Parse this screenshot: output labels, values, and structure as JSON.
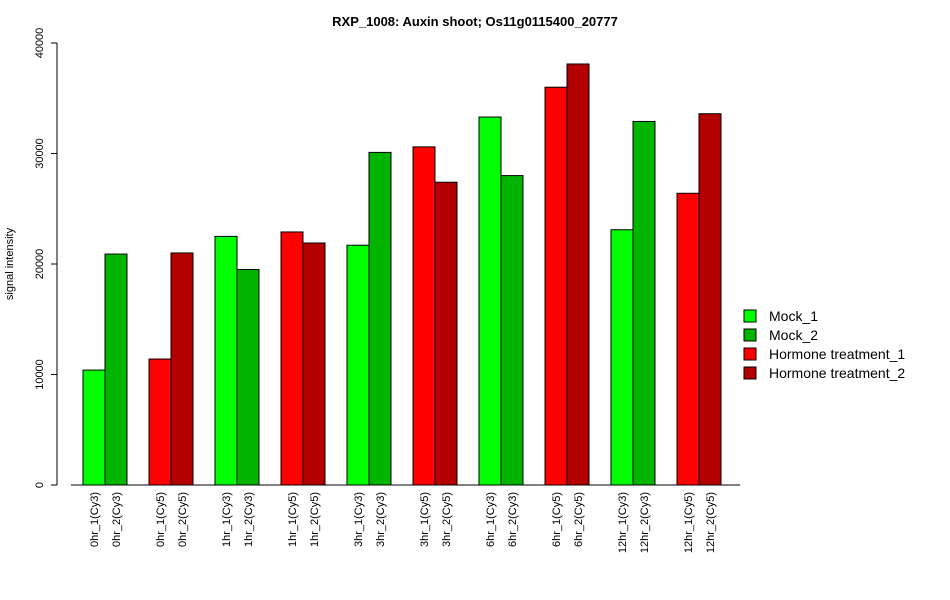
{
  "chart_data": {
    "type": "bar",
    "title": "RXP_1008: Auxin shoot; Os11g0115400_20777",
    "xlabel": "",
    "ylabel": "signal intensity",
    "ylim": [
      0,
      40000
    ],
    "yticks": [
      0,
      10000,
      20000,
      30000,
      40000
    ],
    "grid": false,
    "legend_position": "right",
    "series": [
      {
        "name": "Mock_1",
        "color": "#00ff00"
      },
      {
        "name": "Mock_2",
        "color": "#00b400"
      },
      {
        "name": "Hormone treatment_1",
        "color": "#ff0000"
      },
      {
        "name": "Hormone treatment_2",
        "color": "#b40000"
      }
    ],
    "bars": [
      {
        "label": "0hr_1(Cy3)",
        "value": 10400,
        "series": 0
      },
      {
        "label": "0hr_2(Cy3)",
        "value": 20900,
        "series": 1
      },
      {
        "label": "0hr_1(Cy5)",
        "value": 11400,
        "series": 2
      },
      {
        "label": "0hr_2(Cy5)",
        "value": 21000,
        "series": 3
      },
      {
        "label": "1hr_1(Cy3)",
        "value": 22500,
        "series": 0
      },
      {
        "label": "1hr_2(Cy3)",
        "value": 19500,
        "series": 1
      },
      {
        "label": "1hr_1(Cy5)",
        "value": 22900,
        "series": 2
      },
      {
        "label": "1hr_2(Cy5)",
        "value": 21900,
        "series": 3
      },
      {
        "label": "3hr_1(Cy3)",
        "value": 21700,
        "series": 0
      },
      {
        "label": "3hr_2(Cy3)",
        "value": 30100,
        "series": 1
      },
      {
        "label": "3hr_1(Cy5)",
        "value": 30600,
        "series": 2
      },
      {
        "label": "3hr_2(Cy5)",
        "value": 27400,
        "series": 3
      },
      {
        "label": "6hr_1(Cy3)",
        "value": 33300,
        "series": 0
      },
      {
        "label": "6hr_2(Cy3)",
        "value": 28000,
        "series": 1
      },
      {
        "label": "6hr_1(Cy5)",
        "value": 36000,
        "series": 2
      },
      {
        "label": "6hr_2(Cy5)",
        "value": 38100,
        "series": 3
      },
      {
        "label": "12hr_1(Cy3)",
        "value": 23100,
        "series": 0
      },
      {
        "label": "12hr_2(Cy3)",
        "value": 32900,
        "series": 1
      },
      {
        "label": "12hr_1(Cy5)",
        "value": 26400,
        "series": 2
      },
      {
        "label": "12hr_2(Cy5)",
        "value": 33600,
        "series": 3
      }
    ]
  }
}
